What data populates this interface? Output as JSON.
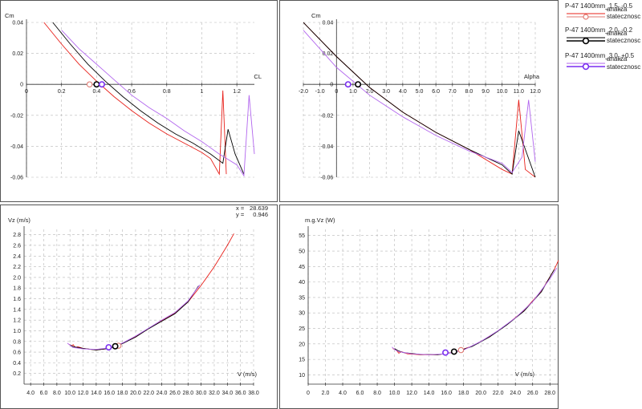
{
  "legend": {
    "items": [
      {
        "name": "P-47 1400mm_1.5_-0.5",
        "line_label": "analiza",
        "point_label": "statecznosc",
        "color": "#e8201a",
        "point_color": "#e07a72"
      },
      {
        "name": "P-47 1400mm_2.0_-0.2",
        "line_label": "analiza",
        "point_label": "statecznosc",
        "color": "#000000",
        "point_color": "#000000"
      },
      {
        "name": "P-47 1400mm_3.0_+0.5",
        "line_label": "analiza",
        "point_label": "statecznosc",
        "color": "#b266ee",
        "point_color": "#7a2ef0"
      }
    ]
  },
  "cursor_readout": {
    "x_label": "x =",
    "x_value": "28.639",
    "y_label": "y =",
    "y_value": "0.946"
  },
  "chart_data": [
    {
      "type": "line",
      "xlabel": "CL",
      "ylabel": "Cm",
      "xlim": [
        0,
        1.3
      ],
      "ylim": [
        -0.06,
        0.04
      ],
      "x_ticks": [
        "0",
        "0.2",
        "0.4",
        "0.6",
        "0.8",
        "1",
        "1.2"
      ],
      "y_ticks": [
        "0.04",
        "0.02",
        "0",
        "-0.02",
        "-0.04",
        "-0.06"
      ],
      "x_tick_values": [
        0,
        0.2,
        0.4,
        0.6,
        0.8,
        1.0,
        1.2
      ],
      "y_tick_values": [
        0.04,
        0.02,
        0,
        -0.02,
        -0.04,
        -0.06
      ],
      "series": [
        {
          "values": [
            [
              0.1,
              0.04
            ],
            [
              0.2,
              0.026
            ],
            [
              0.3,
              0.013
            ],
            [
              0.4,
              0.002
            ],
            [
              0.5,
              -0.008
            ],
            [
              0.6,
              -0.017
            ],
            [
              0.7,
              -0.025
            ],
            [
              0.8,
              -0.032
            ],
            [
              0.9,
              -0.038
            ],
            [
              1.0,
              -0.044
            ],
            [
              1.05,
              -0.048
            ],
            [
              1.1,
              -0.058
            ],
            [
              1.12,
              -0.004
            ],
            [
              1.14,
              -0.058
            ]
          ],
          "points": [
            [
              0.36,
              0
            ]
          ]
        },
        {
          "values": [
            [
              0.15,
              0.04
            ],
            [
              0.25,
              0.026
            ],
            [
              0.35,
              0.013
            ],
            [
              0.45,
              0.002
            ],
            [
              0.55,
              -0.008
            ],
            [
              0.65,
              -0.017
            ],
            [
              0.75,
              -0.025
            ],
            [
              0.85,
              -0.032
            ],
            [
              0.95,
              -0.038
            ],
            [
              1.05,
              -0.045
            ],
            [
              1.12,
              -0.051
            ],
            [
              1.15,
              -0.029
            ],
            [
              1.19,
              -0.045
            ],
            [
              1.24,
              -0.058
            ]
          ],
          "points": [
            [
              0.4,
              0
            ]
          ]
        },
        {
          "values": [
            [
              0.2,
              0.035
            ],
            [
              0.3,
              0.023
            ],
            [
              0.4,
              0.013
            ],
            [
              0.5,
              0.003
            ],
            [
              0.6,
              -0.007
            ],
            [
              0.7,
              -0.015
            ],
            [
              0.8,
              -0.022
            ],
            [
              0.9,
              -0.03
            ],
            [
              1.0,
              -0.037
            ],
            [
              1.1,
              -0.045
            ],
            [
              1.2,
              -0.052
            ],
            [
              1.24,
              -0.059
            ],
            [
              1.27,
              -0.007
            ],
            [
              1.3,
              -0.045
            ]
          ],
          "points": [
            [
              0.43,
              0
            ]
          ]
        }
      ]
    },
    {
      "type": "line",
      "xlabel": "Alpha",
      "ylabel": "Cm",
      "xlim": [
        -2,
        12
      ],
      "ylim": [
        -0.06,
        0.04
      ],
      "x_ticks": [
        "-2.0",
        "-1.0",
        "0",
        "1.0",
        "2.0",
        "3.0",
        "4.0",
        "5.0",
        "6.0",
        "7.0",
        "8.0",
        "9.0",
        "10.0",
        "11.0",
        "12.0"
      ],
      "y_ticks": [
        "0.04",
        "0.02",
        "0",
        "-0.02",
        "-0.04",
        "-0.06"
      ],
      "x_tick_values": [
        -2,
        -1,
        0,
        1,
        2,
        3,
        4,
        5,
        6,
        7,
        8,
        9,
        10,
        11,
        12
      ],
      "y_tick_values": [
        0.04,
        0.02,
        0,
        -0.02,
        -0.04,
        -0.06
      ],
      "series": [
        {
          "values": [
            [
              -2,
              0.04
            ],
            [
              0,
              0.018
            ],
            [
              2,
              -0.002
            ],
            [
              4,
              -0.018
            ],
            [
              6,
              -0.031
            ],
            [
              8,
              -0.042
            ],
            [
              10,
              -0.055
            ],
            [
              10.6,
              -0.058
            ],
            [
              11.0,
              -0.01
            ],
            [
              11.4,
              -0.055
            ],
            [
              12,
              -0.06
            ]
          ],
          "points": [
            [
              1.3,
              0
            ]
          ]
        },
        {
          "values": [
            [
              -2,
              0.04
            ],
            [
              0,
              0.018
            ],
            [
              2,
              -0.002
            ],
            [
              4,
              -0.018
            ],
            [
              6,
              -0.031
            ],
            [
              8,
              -0.042
            ],
            [
              10,
              -0.052
            ],
            [
              10.6,
              -0.058
            ],
            [
              11.0,
              -0.03
            ],
            [
              11.5,
              -0.045
            ],
            [
              12,
              -0.06
            ]
          ],
          "points": [
            [
              1.3,
              0
            ]
          ]
        },
        {
          "values": [
            [
              -2,
              0.035
            ],
            [
              0,
              0.011
            ],
            [
              2,
              -0.007
            ],
            [
              4,
              -0.021
            ],
            [
              6,
              -0.033
            ],
            [
              8,
              -0.043
            ],
            [
              10,
              -0.051
            ],
            [
              10.6,
              -0.057
            ],
            [
              11.2,
              -0.047
            ],
            [
              11.6,
              -0.01
            ],
            [
              12,
              -0.05
            ]
          ],
          "points": [
            [
              0.7,
              0
            ]
          ]
        }
      ]
    },
    {
      "type": "line",
      "xlabel": "V (m/s)",
      "ylabel": "Vz (m/s)",
      "xlim": [
        3,
        38
      ],
      "ylim": [
        0,
        2.9
      ],
      "x_ticks": [
        "4.0",
        "6.0",
        "8.0",
        "10.0",
        "12.0",
        "14.0",
        "16.0",
        "18.0",
        "20.0",
        "22.0",
        "24.0",
        "26.0",
        "28.0",
        "30.0",
        "32.0",
        "34.0",
        "36.0",
        "38.0"
      ],
      "y_ticks": [
        "2.8",
        "2.6",
        "2.4",
        "2.2",
        "2.0",
        "1.8",
        "1.6",
        "1.4",
        "1.2",
        "1.0",
        "0.8",
        "0.6",
        "0.4",
        "0.2"
      ],
      "x_tick_values": [
        4,
        6,
        8,
        10,
        12,
        14,
        16,
        18,
        20,
        22,
        24,
        26,
        28,
        30,
        32,
        34,
        36,
        38
      ],
      "y_tick_values": [
        2.8,
        2.6,
        2.4,
        2.2,
        2.0,
        1.8,
        1.6,
        1.4,
        1.2,
        1.0,
        0.8,
        0.6,
        0.4,
        0.2
      ],
      "series": [
        {
          "values": [
            [
              9.8,
              0.75
            ],
            [
              10.2,
              0.72
            ],
            [
              10.5,
              0.74
            ],
            [
              10.8,
              0.68
            ],
            [
              11.2,
              0.7
            ],
            [
              12,
              0.67
            ],
            [
              14,
              0.64
            ],
            [
              16,
              0.67
            ],
            [
              18,
              0.76
            ],
            [
              20,
              0.89
            ],
            [
              22,
              1.04
            ],
            [
              24,
              1.19
            ],
            [
              26,
              1.33
            ],
            [
              28,
              1.54
            ],
            [
              30,
              1.85
            ],
            [
              32,
              2.2
            ],
            [
              34,
              2.6
            ],
            [
              35,
              2.82
            ]
          ],
          "points": [
            [
              17.4,
              0.72
            ]
          ]
        },
        {
          "values": [
            [
              10,
              0.74
            ],
            [
              10.3,
              0.71
            ],
            [
              10.6,
              0.7
            ],
            [
              12,
              0.67
            ],
            [
              14,
              0.64
            ],
            [
              16,
              0.67
            ],
            [
              18,
              0.76
            ],
            [
              20,
              0.88
            ],
            [
              22,
              1.04
            ],
            [
              24,
              1.18
            ],
            [
              26,
              1.32
            ],
            [
              28,
              1.54
            ],
            [
              29.6,
              1.84
            ]
          ],
          "points": [
            [
              16.9,
              0.71
            ]
          ]
        },
        {
          "values": [
            [
              9.6,
              0.77
            ],
            [
              10,
              0.73
            ],
            [
              10.4,
              0.69
            ],
            [
              12,
              0.66
            ],
            [
              14,
              0.65
            ],
            [
              16,
              0.68
            ],
            [
              18,
              0.77
            ],
            [
              20,
              0.9
            ],
            [
              22,
              1.05
            ],
            [
              24,
              1.2
            ],
            [
              26,
              1.34
            ],
            [
              28,
              1.56
            ],
            [
              29.8,
              1.86
            ]
          ],
          "points": [
            [
              15.9,
              0.69
            ]
          ]
        }
      ]
    },
    {
      "type": "line",
      "xlabel": "V (m/s)",
      "ylabel": "m.g.Vz (W)",
      "xlim": [
        0,
        29
      ],
      "ylim": [
        7,
        57
      ],
      "x_ticks": [
        "0",
        "2.0",
        "4.0",
        "6.0",
        "8.0",
        "10.0",
        "12.0",
        "14.0",
        "16.0",
        "18.0",
        "20.0",
        "22.0",
        "24.0",
        "26.0",
        "28.0"
      ],
      "y_ticks": [
        "55",
        "50",
        "45",
        "40",
        "35",
        "30",
        "25",
        "20",
        "15",
        "10"
      ],
      "x_tick_values": [
        0,
        2,
        4,
        6,
        8,
        10,
        12,
        14,
        16,
        18,
        20,
        22,
        24,
        26,
        28
      ],
      "y_tick_values": [
        55,
        50,
        45,
        40,
        35,
        30,
        25,
        20,
        15,
        10
      ],
      "series": [
        {
          "values": [
            [
              9.8,
              18.5
            ],
            [
              10.2,
              18
            ],
            [
              10.5,
              17
            ],
            [
              10.8,
              17.5
            ],
            [
              11.5,
              16.8
            ],
            [
              13,
              16.5
            ],
            [
              15,
              16.5
            ],
            [
              17,
              17.4
            ],
            [
              19,
              19.3
            ],
            [
              21,
              22.3
            ],
            [
              23,
              26.2
            ],
            [
              25,
              30.8
            ],
            [
              27,
              37
            ],
            [
              28.5,
              44
            ],
            [
              29,
              47
            ]
          ],
          "points": [
            [
              17.7,
              18
            ]
          ]
        },
        {
          "values": [
            [
              10,
              18.5
            ],
            [
              10.4,
              17.8
            ],
            [
              11,
              17.2
            ],
            [
              13,
              16.6
            ],
            [
              15,
              16.5
            ],
            [
              17,
              17.3
            ],
            [
              19,
              19.2
            ],
            [
              21,
              22.2
            ],
            [
              23,
              26.1
            ],
            [
              25,
              30.6
            ],
            [
              27,
              36.8
            ],
            [
              28.5,
              44
            ]
          ],
          "points": [
            [
              16.9,
              17.5
            ]
          ]
        },
        {
          "values": [
            [
              9.7,
              19
            ],
            [
              10,
              18.2
            ],
            [
              10.5,
              17.5
            ],
            [
              12,
              16.8
            ],
            [
              14,
              16.5
            ],
            [
              16,
              16.8
            ],
            [
              18,
              18
            ],
            [
              20,
              20.8
            ],
            [
              22,
              24.3
            ],
            [
              24,
              28.4
            ],
            [
              26,
              33.6
            ],
            [
              28,
              41
            ],
            [
              28.8,
              44.5
            ]
          ],
          "points": [
            [
              15.9,
              17.2
            ]
          ]
        }
      ]
    }
  ]
}
